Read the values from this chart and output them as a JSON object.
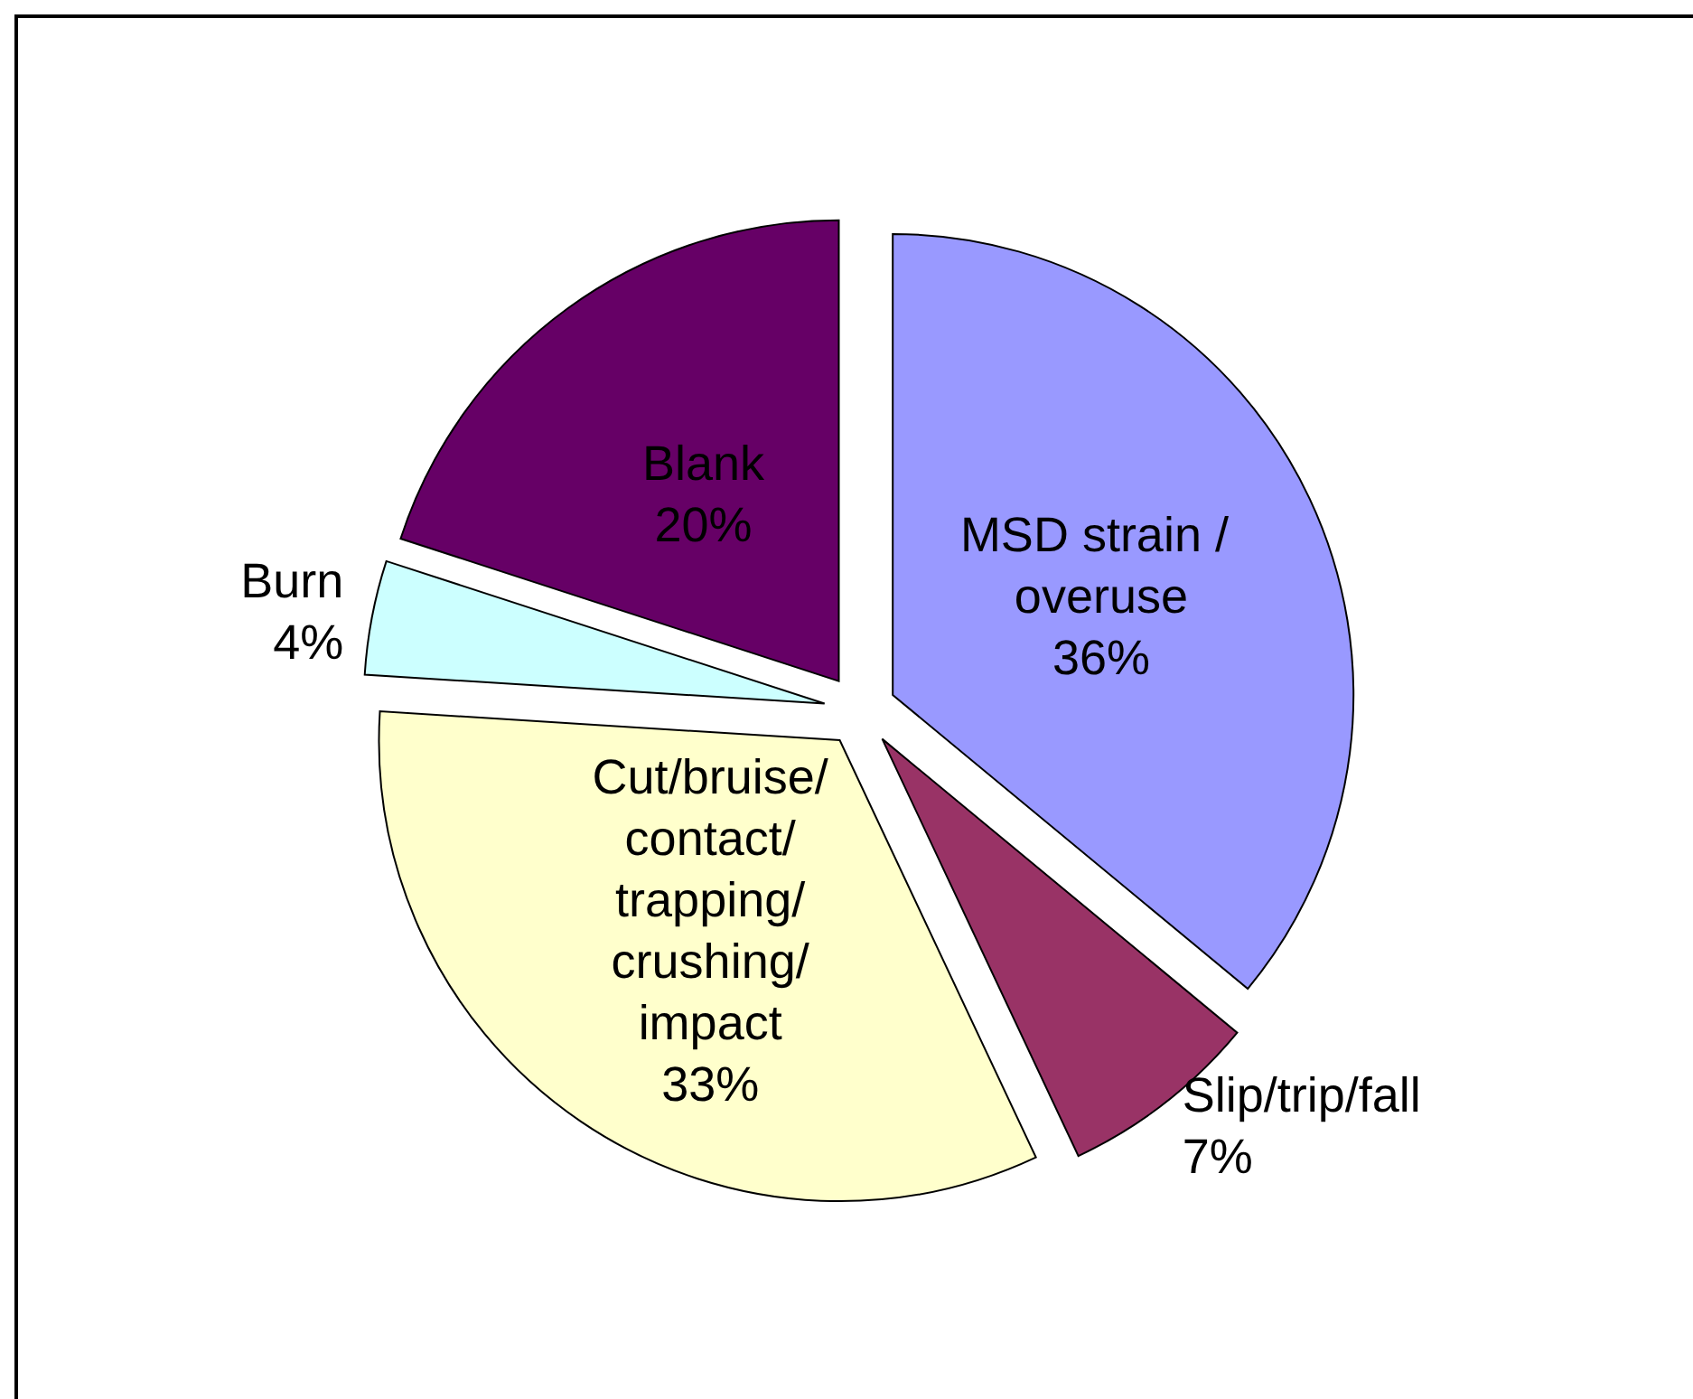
{
  "chart_data": {
    "type": "pie",
    "categories": [
      "MSD strain / overuse",
      "Slip/trip/fall",
      "Cut/bruise/contact/trapping/crushing/impact",
      "Burn",
      "Blank"
    ],
    "values": [
      36,
      7,
      33,
      4,
      20
    ],
    "value_labels": [
      "36%",
      "7%",
      "33%",
      "4%",
      "20%"
    ],
    "colors": [
      "#9999ff",
      "#993366",
      "#ffffcc",
      "#ccffff",
      "#660066"
    ]
  }
}
